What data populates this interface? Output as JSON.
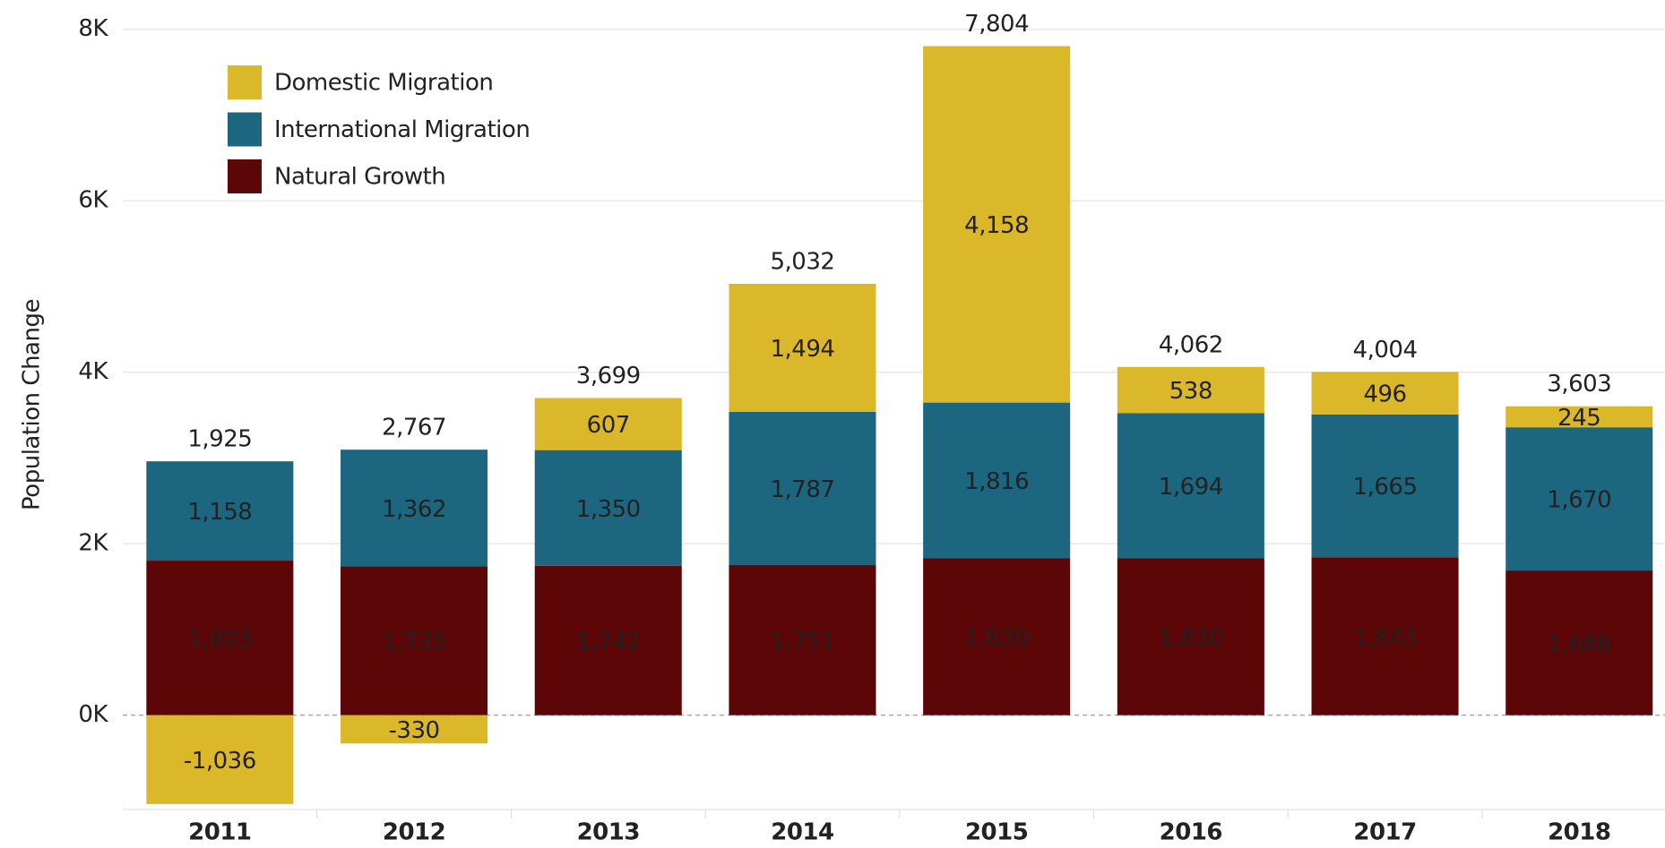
{
  "chart_data": {
    "type": "stacked_bar",
    "y_axis_label": "Population Change",
    "categories": [
      "2011",
      "2012",
      "2013",
      "2014",
      "2015",
      "2016",
      "2017",
      "2018"
    ],
    "series": [
      {
        "name": "Natural Growth",
        "color": "#5c0608",
        "label_color": "#ffffff",
        "values": [
          1803,
          1735,
          1742,
          1751,
          1830,
          1830,
          1843,
          1688
        ],
        "value_labels": [
          "1,803",
          "1,735",
          "1,742",
          "1,751",
          "1,830",
          "1,830",
          "1,843",
          "1,688"
        ]
      },
      {
        "name": "International Migration",
        "color": "#1c6680",
        "label_color": "#ffffff",
        "values": [
          1158,
          1362,
          1350,
          1787,
          1816,
          1694,
          1665,
          1670
        ],
        "value_labels": [
          "1,158",
          "1,362",
          "1,350",
          "1,787",
          "1,816",
          "1,694",
          "1,665",
          "1,670"
        ]
      },
      {
        "name": "Domestic Migration",
        "color": "#dbb829",
        "label_color": "#111111",
        "values": [
          -1036,
          -330,
          607,
          1494,
          4158,
          538,
          496,
          245
        ],
        "value_labels": [
          "-1,036",
          "-330",
          "607",
          "1,494",
          "4,158",
          "538",
          "496",
          "245"
        ]
      }
    ],
    "totals": {
      "values": [
        1925,
        2767,
        3699,
        5032,
        7804,
        4062,
        4004,
        3603
      ],
      "value_labels": [
        "1,925",
        "2,767",
        "3,699",
        "5,032",
        "7,804",
        "4,062",
        "4,004",
        "3,603"
      ]
    },
    "ylim": [
      -1100,
      8300
    ],
    "yticks": [
      {
        "value": 0,
        "label": "0K"
      },
      {
        "value": 2000,
        "label": "2K"
      },
      {
        "value": 4000,
        "label": "4K"
      },
      {
        "value": 6000,
        "label": "6K"
      },
      {
        "value": 8000,
        "label": "8K"
      }
    ],
    "grid": true,
    "legend": "upper left"
  }
}
